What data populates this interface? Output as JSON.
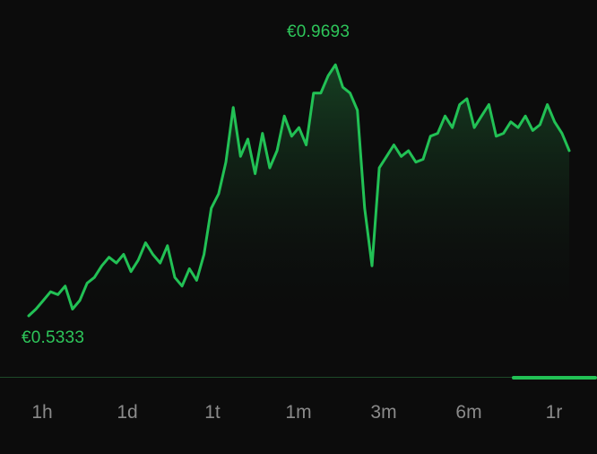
{
  "chart_data": {
    "type": "area",
    "title": "",
    "xlabel": "",
    "ylabel": "",
    "max_label": "€0.9693",
    "min_label": "€0.5333",
    "ylim": [
      0.5333,
      0.9693
    ],
    "line_color": "#22c155",
    "grid": false,
    "values": [
      0.5333,
      0.545,
      0.56,
      0.575,
      0.57,
      0.585,
      0.545,
      0.56,
      0.59,
      0.6,
      0.62,
      0.635,
      0.625,
      0.64,
      0.61,
      0.63,
      0.66,
      0.64,
      0.625,
      0.655,
      0.6,
      0.585,
      0.615,
      0.595,
      0.64,
      0.72,
      0.745,
      0.8,
      0.895,
      0.81,
      0.84,
      0.78,
      0.85,
      0.79,
      0.82,
      0.88,
      0.845,
      0.86,
      0.83,
      0.92,
      0.92,
      0.95,
      0.969,
      0.93,
      0.92,
      0.89,
      0.72,
      0.62,
      0.79,
      0.81,
      0.83,
      0.81,
      0.82,
      0.8,
      0.805,
      0.845,
      0.85,
      0.88,
      0.86,
      0.9,
      0.91,
      0.86,
      0.88,
      0.9,
      0.845,
      0.85,
      0.87,
      0.86,
      0.88,
      0.855,
      0.865,
      0.9,
      0.87,
      0.85,
      0.82
    ]
  },
  "ranges": {
    "active": "1r",
    "tabs": [
      "1h",
      "1d",
      "1t",
      "1m",
      "3m",
      "6m",
      "1r"
    ]
  },
  "colors": {
    "background": "#0c0c0c",
    "accent": "#22c155",
    "label": "#2ec55a",
    "tab_text": "#8a8a8a"
  }
}
